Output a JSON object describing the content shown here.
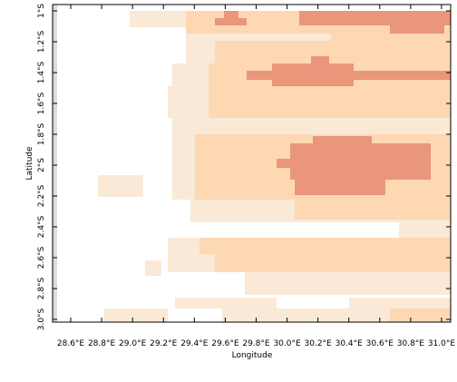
{
  "map": {
    "x_axis": {
      "title": "Longitude",
      "ticks": [
        {
          "value": 28.6,
          "label": "28.6°E"
        },
        {
          "value": 28.8,
          "label": "28.8°E"
        },
        {
          "value": 29.0,
          "label": "29.0°E"
        },
        {
          "value": 29.2,
          "label": "29.2°E"
        },
        {
          "value": 29.4,
          "label": "29.4°E"
        },
        {
          "value": 29.6,
          "label": "29.6°E"
        },
        {
          "value": 29.8,
          "label": "29.8°E"
        },
        {
          "value": 30.0,
          "label": "30.0°E"
        },
        {
          "value": 30.2,
          "label": "30.2°E"
        },
        {
          "value": 30.4,
          "label": "30.4°E"
        },
        {
          "value": 30.6,
          "label": "30.6°E"
        },
        {
          "value": 30.8,
          "label": "30.8°E"
        },
        {
          "value": 31.0,
          "label": "31.0°E"
        }
      ]
    },
    "y_axis": {
      "title": "Latitude",
      "ticks": [
        {
          "value": -1,
          "label": "1°S"
        },
        {
          "value": -1.2,
          "label": "1.2°S"
        },
        {
          "value": -1.4,
          "label": "1.4°S"
        },
        {
          "value": -1.6,
          "label": "1.6°S"
        },
        {
          "value": -1.8,
          "label": "1.8°S"
        },
        {
          "value": -2,
          "label": "2°S"
        },
        {
          "value": -2.2,
          "label": "2.2°S"
        },
        {
          "value": -2.4,
          "label": "2.4°S"
        },
        {
          "value": -2.6,
          "label": "2.6°S"
        },
        {
          "value": -2.8,
          "label": "2.8°S"
        },
        {
          "value": -3.0,
          "label": "3.0°S"
        }
      ]
    }
  }
}
